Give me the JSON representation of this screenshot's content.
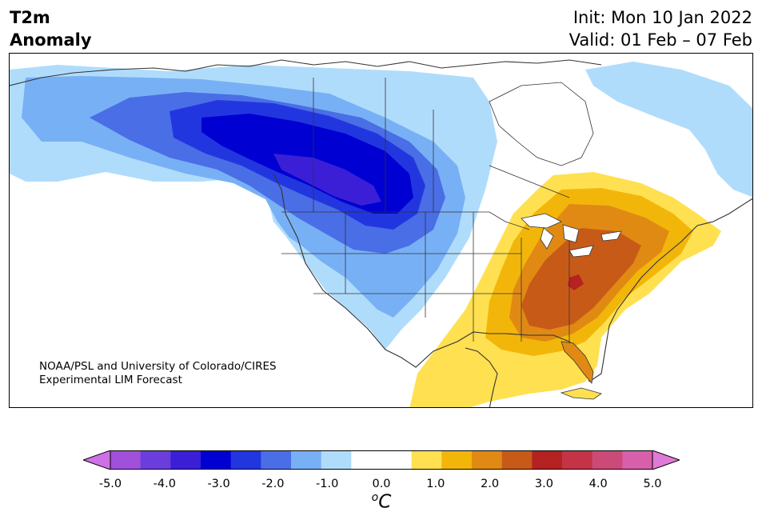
{
  "header": {
    "variable_line1": "T2m",
    "variable_line2": "Anomaly",
    "init": "Init: Mon 10 Jan 2022",
    "valid": "Valid: 01 Feb – 07 Feb"
  },
  "credit": {
    "line1": "NOAA/PSL and University of Colorado/CIRES",
    "line2": "Experimental LIM Forecast"
  },
  "colorbar": {
    "ticks": [
      "-5.0",
      "-4.0",
      "-3.0",
      "-2.0",
      "-1.0",
      "0.0",
      "1.0",
      "2.0",
      "3.0",
      "4.0",
      "5.0"
    ],
    "unit_base": "C",
    "unit_sup": "o",
    "colors": [
      "#a150dc",
      "#6b3ddc",
      "#3b1fd6",
      "#0000d2",
      "#2236e0",
      "#4a6ee6",
      "#78b0f5",
      "#b0dcfc",
      "#ffffff",
      "#ffffff",
      "#ffe050",
      "#f2b60a",
      "#e08a14",
      "#c85a18",
      "#b42222",
      "#c43446",
      "#cc4a78",
      "#d860aa"
    ],
    "under_color": "#d070e6",
    "over_color": "#e07ad8"
  },
  "map": {
    "region": "North America",
    "palette": {
      "cold1": "#b0dcfc",
      "cold2": "#78b0f5",
      "cold3": "#4a6ee6",
      "cold4": "#2236e0",
      "cold5": "#0000d2",
      "cold6": "#3b1fd6",
      "warm1": "#ffe050",
      "warm2": "#f2b60a",
      "warm3": "#e08a14",
      "warm4": "#c85a18",
      "warm5": "#b42222",
      "land_line": "#333333"
    }
  }
}
